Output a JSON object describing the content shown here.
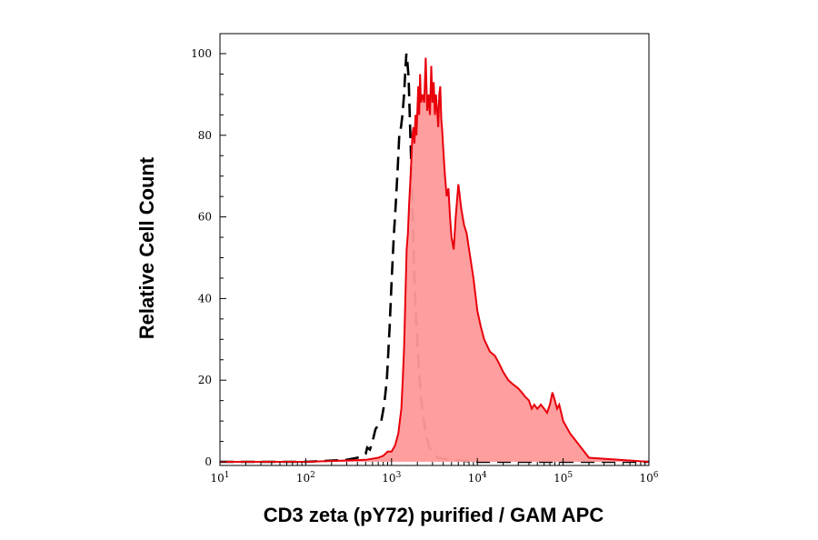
{
  "chart_data": {
    "type": "area",
    "xscale": "log",
    "xlim": [
      10,
      1000000
    ],
    "ylim": [
      0,
      100
    ],
    "xlabel": "CD3 zeta (pY72) purified / GAM APC",
    "ylabel": "Relative Cell Count",
    "grid": false,
    "colors": {
      "stained_line": "#e8000b",
      "stained_fill": "#ff9999",
      "control_line": "#000000"
    },
    "x_ticks": [
      {
        "base": "10",
        "exp": "1",
        "value": 10
      },
      {
        "base": "10",
        "exp": "2",
        "value": 100
      },
      {
        "base": "10",
        "exp": "3",
        "value": 1000
      },
      {
        "base": "10",
        "exp": "4",
        "value": 10000
      },
      {
        "base": "10",
        "exp": "5",
        "value": 100000
      },
      {
        "base": "10",
        "exp": "6",
        "value": 1000000
      }
    ],
    "y_ticks": [
      {
        "label": "0",
        "value": 0
      },
      {
        "label": "20",
        "value": 20
      },
      {
        "label": "40",
        "value": 40
      },
      {
        "label": "60",
        "value": 60
      },
      {
        "label": "80",
        "value": 80
      },
      {
        "label": "100",
        "value": 100
      }
    ],
    "series": [
      {
        "style": "dashed",
        "x": [
          10,
          100,
          300,
          400,
          500,
          520,
          560,
          600,
          650,
          700,
          760,
          820,
          880,
          950,
          1000,
          1060,
          1120,
          1180,
          1230,
          1290,
          1340,
          1400,
          1450,
          1490,
          1530,
          1580,
          1630,
          1700,
          1780,
          1850,
          1950,
          2100,
          2250,
          2450,
          2700,
          3000,
          3500,
          5000,
          10000,
          100000,
          1000000
        ],
        "y": [
          0,
          0,
          0.5,
          1,
          2,
          3.5,
          3,
          5,
          8,
          9,
          10,
          14,
          20,
          33,
          44,
          55,
          63,
          72,
          80,
          82,
          85,
          90,
          96,
          100,
          98,
          94,
          85,
          72,
          57,
          45,
          33,
          22,
          14,
          8,
          4,
          2,
          1,
          0.5,
          0,
          0,
          0
        ]
      },
      {
        "style": "solid-filled",
        "x": [
          10,
          100,
          500,
          700,
          800,
          900,
          1000,
          1100,
          1200,
          1250,
          1300,
          1350,
          1400,
          1450,
          1500,
          1550,
          1600,
          1650,
          1700,
          1750,
          1800,
          1850,
          1900,
          1950,
          2000,
          2050,
          2100,
          2150,
          2200,
          2300,
          2400,
          2500,
          2600,
          2700,
          2800,
          2900,
          3000,
          3100,
          3200,
          3300,
          3400,
          3500,
          3600,
          3700,
          3800,
          3900,
          4000,
          4200,
          4400,
          4600,
          4800,
          5000,
          5300,
          5600,
          6000,
          6500,
          7000,
          7500,
          8000,
          9000,
          10000,
          11000,
          12000,
          14000,
          16000,
          18000,
          20000,
          23000,
          26000,
          30000,
          33000,
          36000,
          40000,
          43000,
          46000,
          50000,
          55000,
          60000,
          65000,
          70000,
          75000,
          80000,
          85000,
          90000,
          95000,
          100000,
          120000,
          200000,
          1000000
        ],
        "y": [
          0,
          0,
          0.5,
          1,
          1.5,
          2.5,
          2.5,
          4,
          7,
          10,
          13,
          20,
          28,
          40,
          52,
          56,
          63,
          68,
          74,
          80,
          82,
          78,
          85,
          80,
          86,
          92,
          85,
          95,
          88,
          90,
          88,
          99,
          86,
          90,
          85,
          97,
          88,
          93,
          85,
          90,
          86,
          82,
          90,
          92,
          84,
          81,
          77,
          70,
          65,
          67,
          60,
          55,
          52,
          60,
          68,
          62,
          58,
          56,
          52,
          45,
          37,
          33,
          30,
          27,
          26,
          24,
          22,
          20,
          19,
          18,
          17,
          16,
          15,
          13,
          14,
          13,
          14,
          13,
          12,
          14,
          17,
          15,
          13,
          14,
          12,
          10,
          7,
          1,
          0
        ]
      }
    ]
  }
}
